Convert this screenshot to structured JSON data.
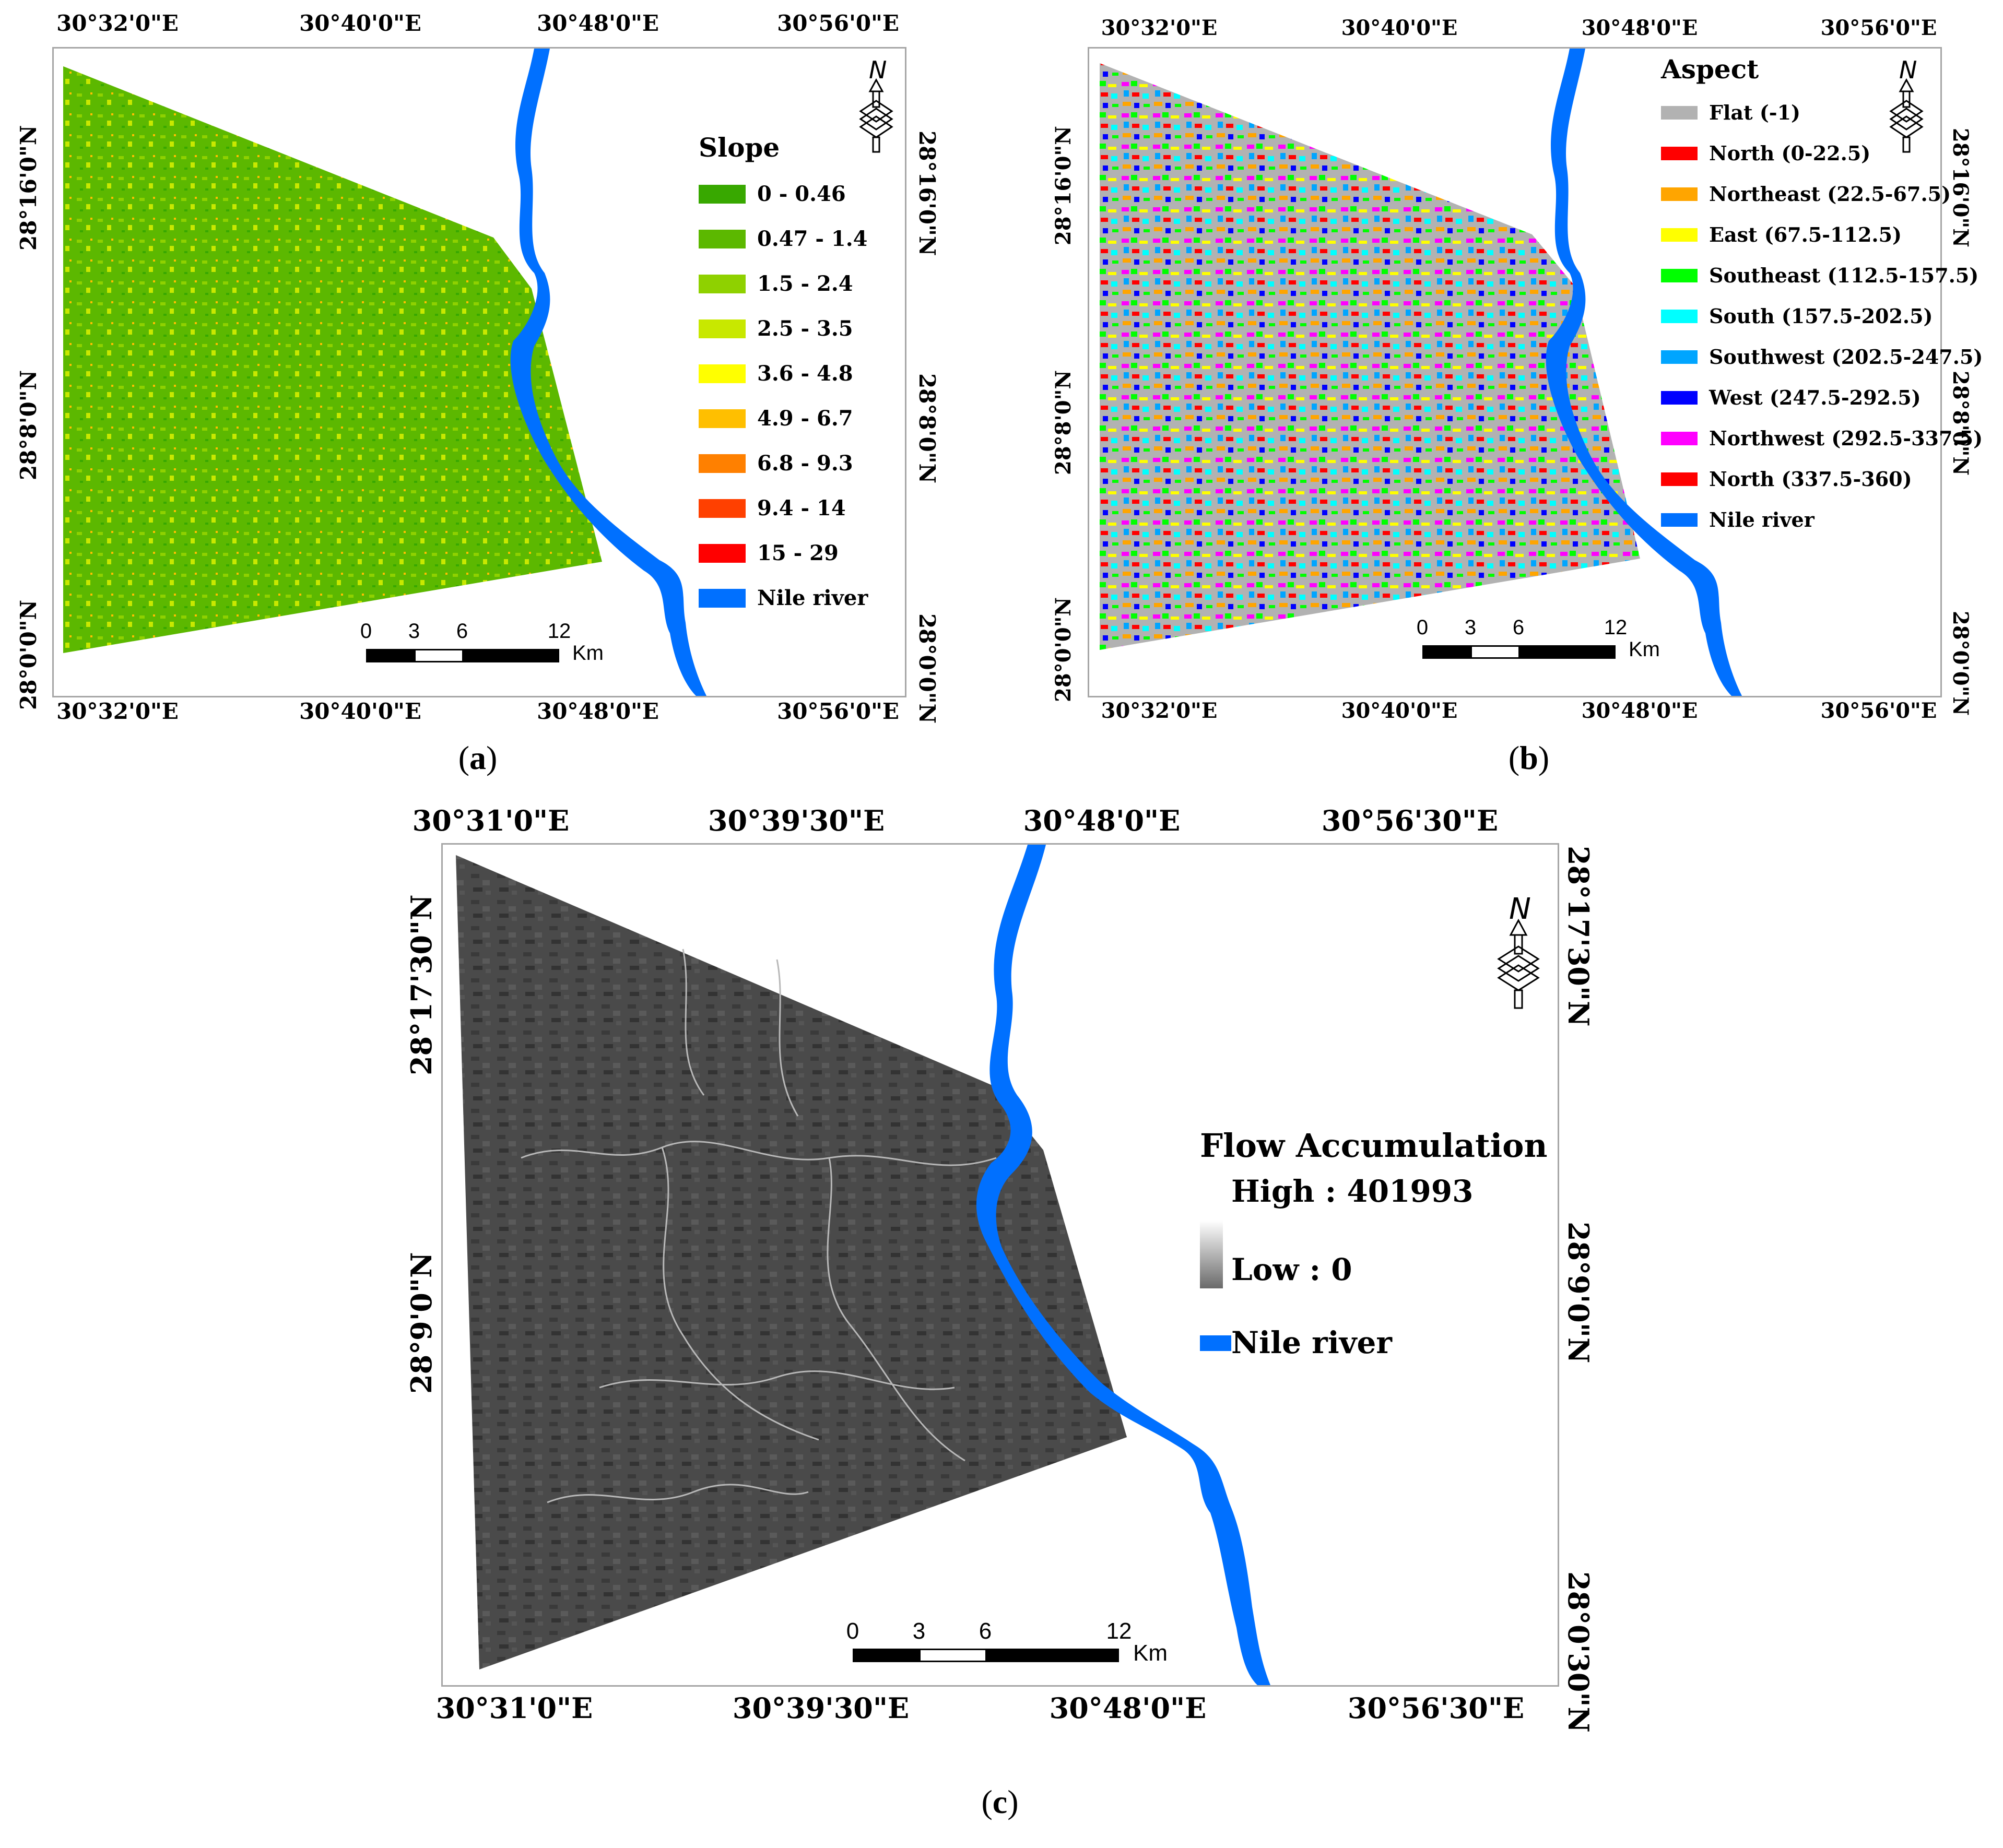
{
  "panels": {
    "a": {
      "caption_label": "a",
      "top_ticks": [
        "30°32'0\"E",
        "30°40'0\"E",
        "30°48'0\"E",
        "30°56'0\"E"
      ],
      "bottom_ticks": [
        "30°32'0\"E",
        "30°40'0\"E",
        "30°48'0\"E",
        "30°56'0\"E"
      ],
      "left_ticks": [
        "28°16'0\"N",
        "28°8'0\"N",
        "28°0'0\"N"
      ],
      "right_ticks": [
        "28°16'0\"N",
        "28°8'0\"N",
        "28°0'0\"N"
      ],
      "legend": {
        "title": "Slope",
        "items": [
          {
            "label": "0 - 0.46",
            "color": "#38a800"
          },
          {
            "label": "0.47 - 1.4",
            "color": "#5cb800"
          },
          {
            "label": "1.5 - 2.4",
            "color": "#8fd100"
          },
          {
            "label": "2.5 - 3.5",
            "color": "#c8e800"
          },
          {
            "label": "3.6 - 4.8",
            "color": "#ffff00"
          },
          {
            "label": "4.9 - 6.7",
            "color": "#ffbf00"
          },
          {
            "label": "6.8 - 9.3",
            "color": "#ff8000"
          },
          {
            "label": "9.4 - 14",
            "color": "#ff4000"
          },
          {
            "label": "15 - 29",
            "color": "#ff0000"
          },
          {
            "label": "Nile river",
            "color": "#0070ff"
          }
        ]
      },
      "scale": {
        "labels": [
          "0",
          "3",
          "6",
          "12"
        ],
        "unit": "Km"
      },
      "north_label": "N"
    },
    "b": {
      "caption_label": "b",
      "top_ticks": [
        "30°32'0\"E",
        "30°40'0\"E",
        "30°48'0\"E",
        "30°56'0\"E"
      ],
      "bottom_ticks": [
        "30°32'0\"E",
        "30°40'0\"E",
        "30°48'0\"E",
        "30°56'0\"E"
      ],
      "left_ticks": [
        "28°16'0\"N",
        "28°8'0\"N",
        "28°0'0\"N"
      ],
      "right_ticks": [
        "28°16'0\"N",
        "28°8'0\"N",
        "28°0'0\"N"
      ],
      "legend": {
        "title": "Aspect",
        "items": [
          {
            "label": "Flat (-1)",
            "color": "#b2b2b2"
          },
          {
            "label": "North (0-22.5)",
            "color": "#ff0000"
          },
          {
            "label": "Northeast (22.5-67.5)",
            "color": "#ffa500"
          },
          {
            "label": "East (67.5-112.5)",
            "color": "#ffff00"
          },
          {
            "label": "Southeast (112.5-157.5)",
            "color": "#00ff00"
          },
          {
            "label": "South (157.5-202.5)",
            "color": "#00ffff"
          },
          {
            "label": "Southwest (202.5-247.5)",
            "color": "#00a5ff"
          },
          {
            "label": "West (247.5-292.5)",
            "color": "#0000ff"
          },
          {
            "label": "Northwest (292.5-337.5)",
            "color": "#ff00ff"
          },
          {
            "label": "North (337.5-360)",
            "color": "#ff0000"
          },
          {
            "label": "Nile river",
            "color": "#0070ff"
          }
        ]
      },
      "scale": {
        "labels": [
          "0",
          "3",
          "6",
          "12"
        ],
        "unit": "Km"
      },
      "north_label": "N"
    },
    "c": {
      "caption_label": "c",
      "top_ticks": [
        "30°31'0\"E",
        "30°39'30\"E",
        "30°48'0\"E",
        "30°56'30\"E"
      ],
      "bottom_ticks": [
        "30°31'0\"E",
        "30°39'30\"E",
        "30°48'0\"E",
        "30°56'30\"E"
      ],
      "left_ticks": [
        "28°17'30\"N",
        "28°9'0\"N"
      ],
      "right_ticks": [
        "28°17'30\"N",
        "28°9'0\"N",
        "28°0'30\"N"
      ],
      "legend": {
        "title": "Flow Accumulation",
        "high": "High : 401993",
        "low": "Low : 0",
        "river": "Nile river",
        "river_color": "#0070ff"
      },
      "scale": {
        "labels": [
          "0",
          "3",
          "6",
          "12"
        ],
        "unit": "Km"
      },
      "north_label": "N"
    }
  }
}
